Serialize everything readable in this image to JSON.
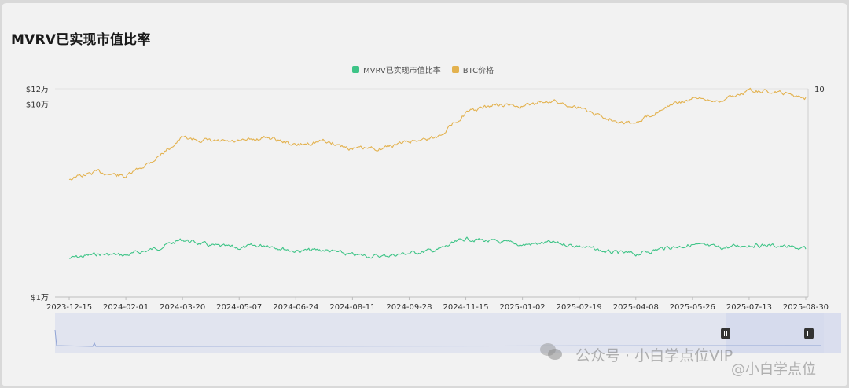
{
  "title": "MVRV已实现市值比率",
  "legend": [
    {
      "name": "MVRV已实现市值比率",
      "color": "#3ec487"
    },
    {
      "name": "BTC价格",
      "color": "#e3b24f"
    }
  ],
  "watermark": {
    "line1": "公众号 · 小白学点位VIP",
    "line2": "@小白学点位"
  },
  "chart_data": {
    "type": "line",
    "x_ticks": [
      "2023-12-15",
      "2024-02-01",
      "2024-03-20",
      "2024-05-07",
      "2024-06-24",
      "2024-08-11",
      "2024-09-28",
      "2024-11-15",
      "2025-01-02",
      "2025-02-19",
      "2025-04-08",
      "2025-05-26",
      "2025-07-13",
      "2025-08-30"
    ],
    "y_left_ticks": [
      "$12万",
      "$10万",
      "$1万"
    ],
    "y_right_ticks": [
      "10"
    ],
    "y_left_scale": "log",
    "y_left_range": [
      10000,
      120000
    ],
    "y_right_range": [
      0,
      10
    ],
    "grid": "horizontal",
    "legend_position": "top-center",
    "x": [
      "2023-12-15",
      "2024-01-08",
      "2024-02-01",
      "2024-02-25",
      "2024-03-20",
      "2024-04-13",
      "2024-05-07",
      "2024-05-31",
      "2024-06-24",
      "2024-07-18",
      "2024-08-11",
      "2024-09-04",
      "2024-09-28",
      "2024-10-22",
      "2024-11-15",
      "2024-12-09",
      "2025-01-02",
      "2025-01-26",
      "2025-02-19",
      "2025-03-15",
      "2025-04-08",
      "2025-05-02",
      "2025-05-26",
      "2025-06-19",
      "2025-07-13",
      "2025-08-06",
      "2025-08-30"
    ],
    "series": [
      {
        "name": "BTC价格",
        "axis": "left",
        "color": "#e3b24f",
        "values": [
          41000,
          44500,
          42000,
          51500,
          67000,
          64000,
          63500,
          67500,
          61000,
          64500,
          58500,
          59000,
          64000,
          67500,
          90000,
          99000,
          97000,
          104500,
          96000,
          84500,
          79000,
          96500,
          106000,
          104500,
          117500,
          115000,
          108000
        ]
      },
      {
        "name": "MVRV已实现市值比率",
        "axis": "right",
        "color": "#3ec487",
        "values": [
          1.85,
          2.05,
          2.0,
          2.3,
          2.75,
          2.45,
          2.35,
          2.5,
          2.2,
          2.25,
          2.0,
          1.95,
          2.1,
          2.25,
          2.8,
          2.65,
          2.5,
          2.6,
          2.45,
          2.15,
          2.05,
          2.35,
          2.5,
          2.35,
          2.5,
          2.45,
          2.3
        ]
      }
    ]
  }
}
